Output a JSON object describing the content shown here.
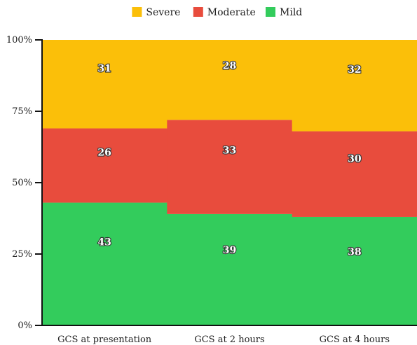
{
  "chart_data": {
    "type": "bar",
    "stacked": true,
    "percent": true,
    "categories": [
      "GCS at presentation",
      "GCS at 2 hours",
      "GCS at 4 hours"
    ],
    "series": [
      {
        "name": "Mild",
        "color": "#33cc5c",
        "values": [
          43,
          39,
          38
        ]
      },
      {
        "name": "Moderate",
        "color": "#e84c3d",
        "values": [
          26,
          33,
          30
        ]
      },
      {
        "name": "Severe",
        "color": "#fbbf09",
        "values": [
          31,
          28,
          32
        ]
      }
    ],
    "legend_order": [
      "Severe",
      "Moderate",
      "Mild"
    ],
    "legend_position": "top-center",
    "y_ticks": [
      "0%",
      "25%",
      "50%",
      "75%",
      "100%"
    ],
    "ylim": [
      0,
      100
    ],
    "title": "",
    "xlabel": "",
    "ylabel": "",
    "grid": false
  }
}
